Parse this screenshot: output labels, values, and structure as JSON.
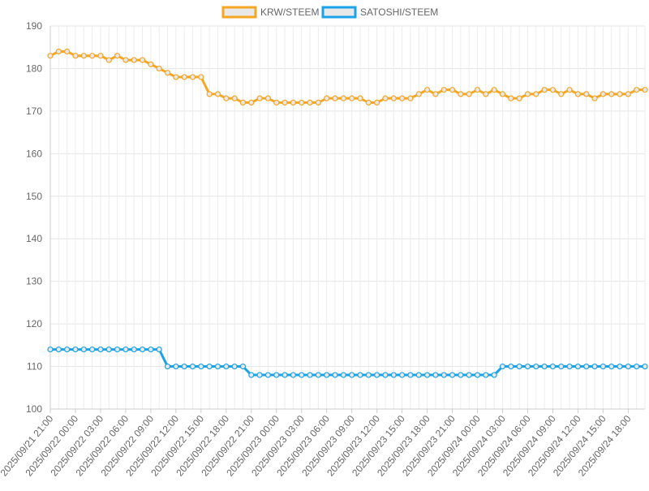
{
  "chart_data": {
    "type": "line",
    "title": "",
    "xlabel": "",
    "ylabel": "",
    "ylim": [
      100,
      190
    ],
    "y_ticks": [
      100,
      110,
      120,
      130,
      140,
      150,
      160,
      170,
      180,
      190
    ],
    "grid": true,
    "legend_position": "top",
    "x_tick_labels": [
      "2025/09/21 21:00",
      "2025/09/22 00:00",
      "2025/09/22 03:00",
      "2025/09/22 06:00",
      "2025/09/22 09:00",
      "2025/09/22 12:00",
      "2025/09/22 15:00",
      "2025/09/22 18:00",
      "2025/09/22 21:00",
      "2025/09/23 00:00",
      "2025/09/23 03:00",
      "2025/09/23 06:00",
      "2025/09/23 09:00",
      "2025/09/23 12:00",
      "2025/09/23 15:00",
      "2025/09/23 18:00",
      "2025/09/23 21:00",
      "2025/09/24 00:00",
      "2025/09/24 03:00",
      "2025/09/24 06:00",
      "2025/09/24 09:00",
      "2025/09/24 12:00",
      "2025/09/24 15:00",
      "2025/09/24 18:00"
    ],
    "x_start": "2025/09/21 21:00",
    "x_interval_hours": 1,
    "series": [
      {
        "name": "KRW/STEEM",
        "color": "#f5a623",
        "values": [
          183,
          184,
          184,
          183,
          183,
          183,
          183,
          182,
          183,
          182,
          182,
          182,
          181,
          180,
          179,
          178,
          178,
          178,
          178,
          174,
          174,
          173,
          173,
          172,
          172,
          173,
          173,
          172,
          172,
          172,
          172,
          172,
          172,
          173,
          173,
          173,
          173,
          173,
          172,
          172,
          173,
          173,
          173,
          173,
          174,
          175,
          174,
          175,
          175,
          174,
          174,
          175,
          174,
          175,
          174,
          173,
          173,
          174,
          174,
          175,
          175,
          174,
          175,
          174,
          174,
          173,
          174,
          174,
          174,
          174,
          175,
          175
        ]
      },
      {
        "name": "SATOSHI/STEEM",
        "color": "#1aa3e8",
        "values": [
          114,
          114,
          114,
          114,
          114,
          114,
          114,
          114,
          114,
          114,
          114,
          114,
          114,
          114,
          110,
          110,
          110,
          110,
          110,
          110,
          110,
          110,
          110,
          110,
          108,
          108,
          108,
          108,
          108,
          108,
          108,
          108,
          108,
          108,
          108,
          108,
          108,
          108,
          108,
          108,
          108,
          108,
          108,
          108,
          108,
          108,
          108,
          108,
          108,
          108,
          108,
          108,
          108,
          108,
          110,
          110,
          110,
          110,
          110,
          110,
          110,
          110,
          110,
          110,
          110,
          110,
          110,
          110,
          110,
          110,
          110,
          110
        ]
      }
    ]
  }
}
